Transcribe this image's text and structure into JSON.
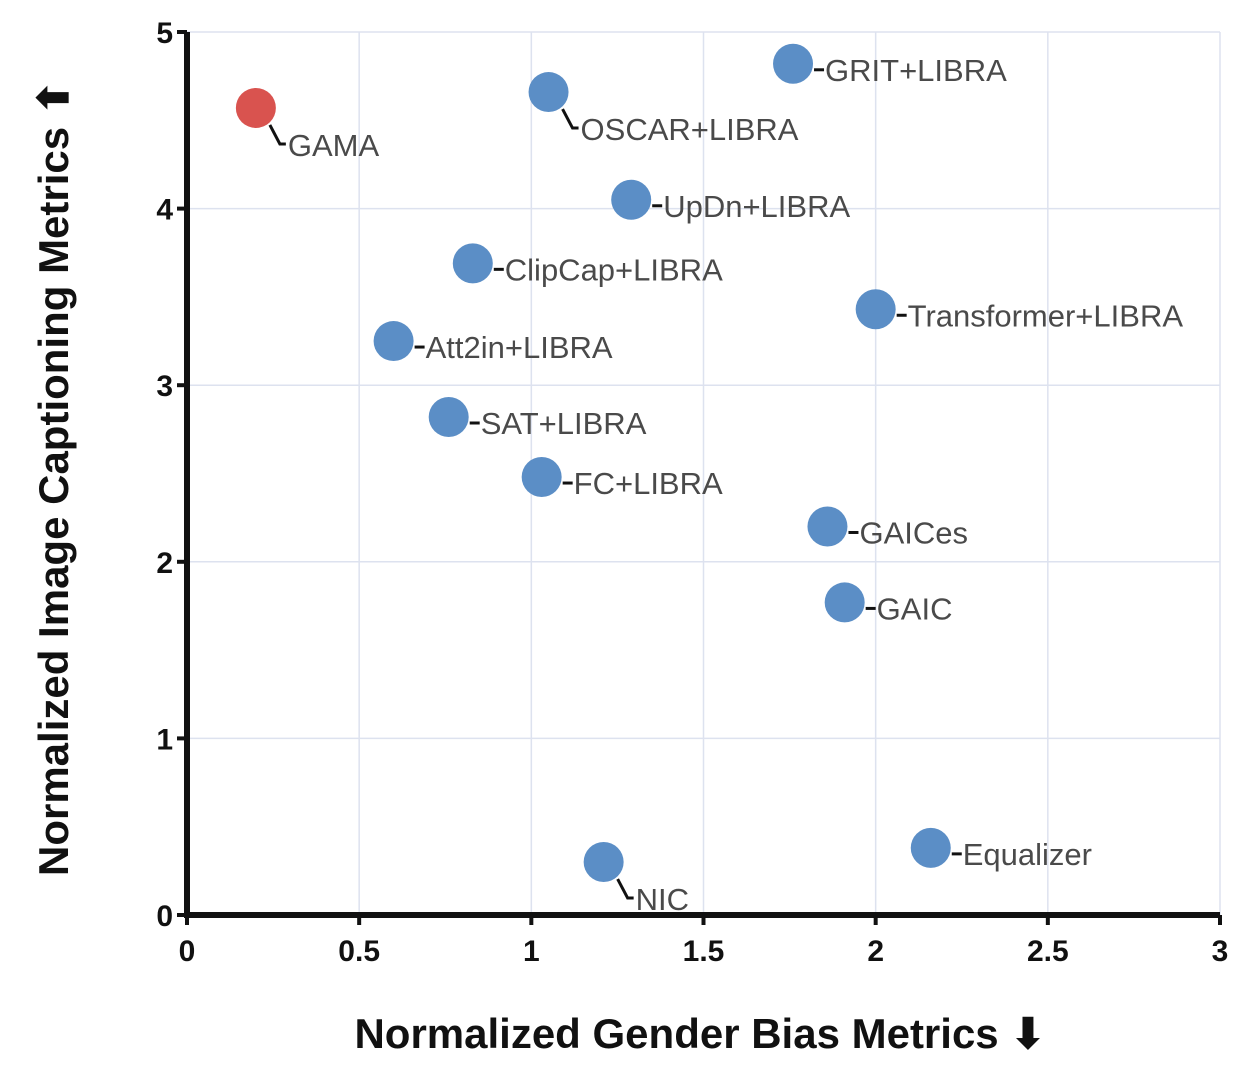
{
  "chart_data": {
    "type": "scatter",
    "title": "",
    "xlabel": "Normalized Gender Bias Metrics",
    "xlabel_arrow": "⬇",
    "ylabel": "Normalized Image Captioning Metrics",
    "ylabel_arrow": "⬆",
    "xlim": [
      0,
      3
    ],
    "ylim": [
      0,
      5
    ],
    "xticks": [
      0,
      0.5,
      1,
      1.5,
      2,
      2.5,
      3
    ],
    "xtick_labels": [
      "0",
      "0.5",
      "1",
      "1.5",
      "2",
      "2.5",
      "3"
    ],
    "yticks": [
      0,
      1,
      2,
      3,
      4,
      5
    ],
    "ytick_labels": [
      "0",
      "1",
      "2",
      "3",
      "4",
      "5"
    ],
    "grid": true,
    "colors": {
      "highlight": "#d9534f",
      "default": "#5b8ec6",
      "axis": "#111111",
      "grid": "#dde2ef"
    },
    "points": [
      {
        "label": "GAMA",
        "x": 0.2,
        "y": 4.57,
        "highlight": true,
        "leader": "down"
      },
      {
        "label": "OSCAR+LIBRA",
        "x": 1.05,
        "y": 4.66,
        "highlight": false,
        "leader": "down"
      },
      {
        "label": "GRIT+LIBRA",
        "x": 1.76,
        "y": 4.82,
        "highlight": false,
        "leader": "right"
      },
      {
        "label": "UpDn+LIBRA",
        "x": 1.29,
        "y": 4.05,
        "highlight": false,
        "leader": "right"
      },
      {
        "label": "ClipCap+LIBRA",
        "x": 0.83,
        "y": 3.69,
        "highlight": false,
        "leader": "right"
      },
      {
        "label": "Transformer+LIBRA",
        "x": 2.0,
        "y": 3.43,
        "highlight": false,
        "leader": "right"
      },
      {
        "label": "Att2in+LIBRA",
        "x": 0.6,
        "y": 3.25,
        "highlight": false,
        "leader": "right"
      },
      {
        "label": "SAT+LIBRA",
        "x": 0.76,
        "y": 2.82,
        "highlight": false,
        "leader": "right"
      },
      {
        "label": "FC+LIBRA",
        "x": 1.03,
        "y": 2.48,
        "highlight": false,
        "leader": "right"
      },
      {
        "label": "GAICes",
        "x": 1.86,
        "y": 2.2,
        "highlight": false,
        "leader": "right"
      },
      {
        "label": "GAIC",
        "x": 1.91,
        "y": 1.77,
        "highlight": false,
        "leader": "right"
      },
      {
        "label": "NIC",
        "x": 1.21,
        "y": 0.3,
        "highlight": false,
        "leader": "down"
      },
      {
        "label": "Equalizer",
        "x": 2.16,
        "y": 0.38,
        "highlight": false,
        "leader": "right"
      }
    ]
  }
}
